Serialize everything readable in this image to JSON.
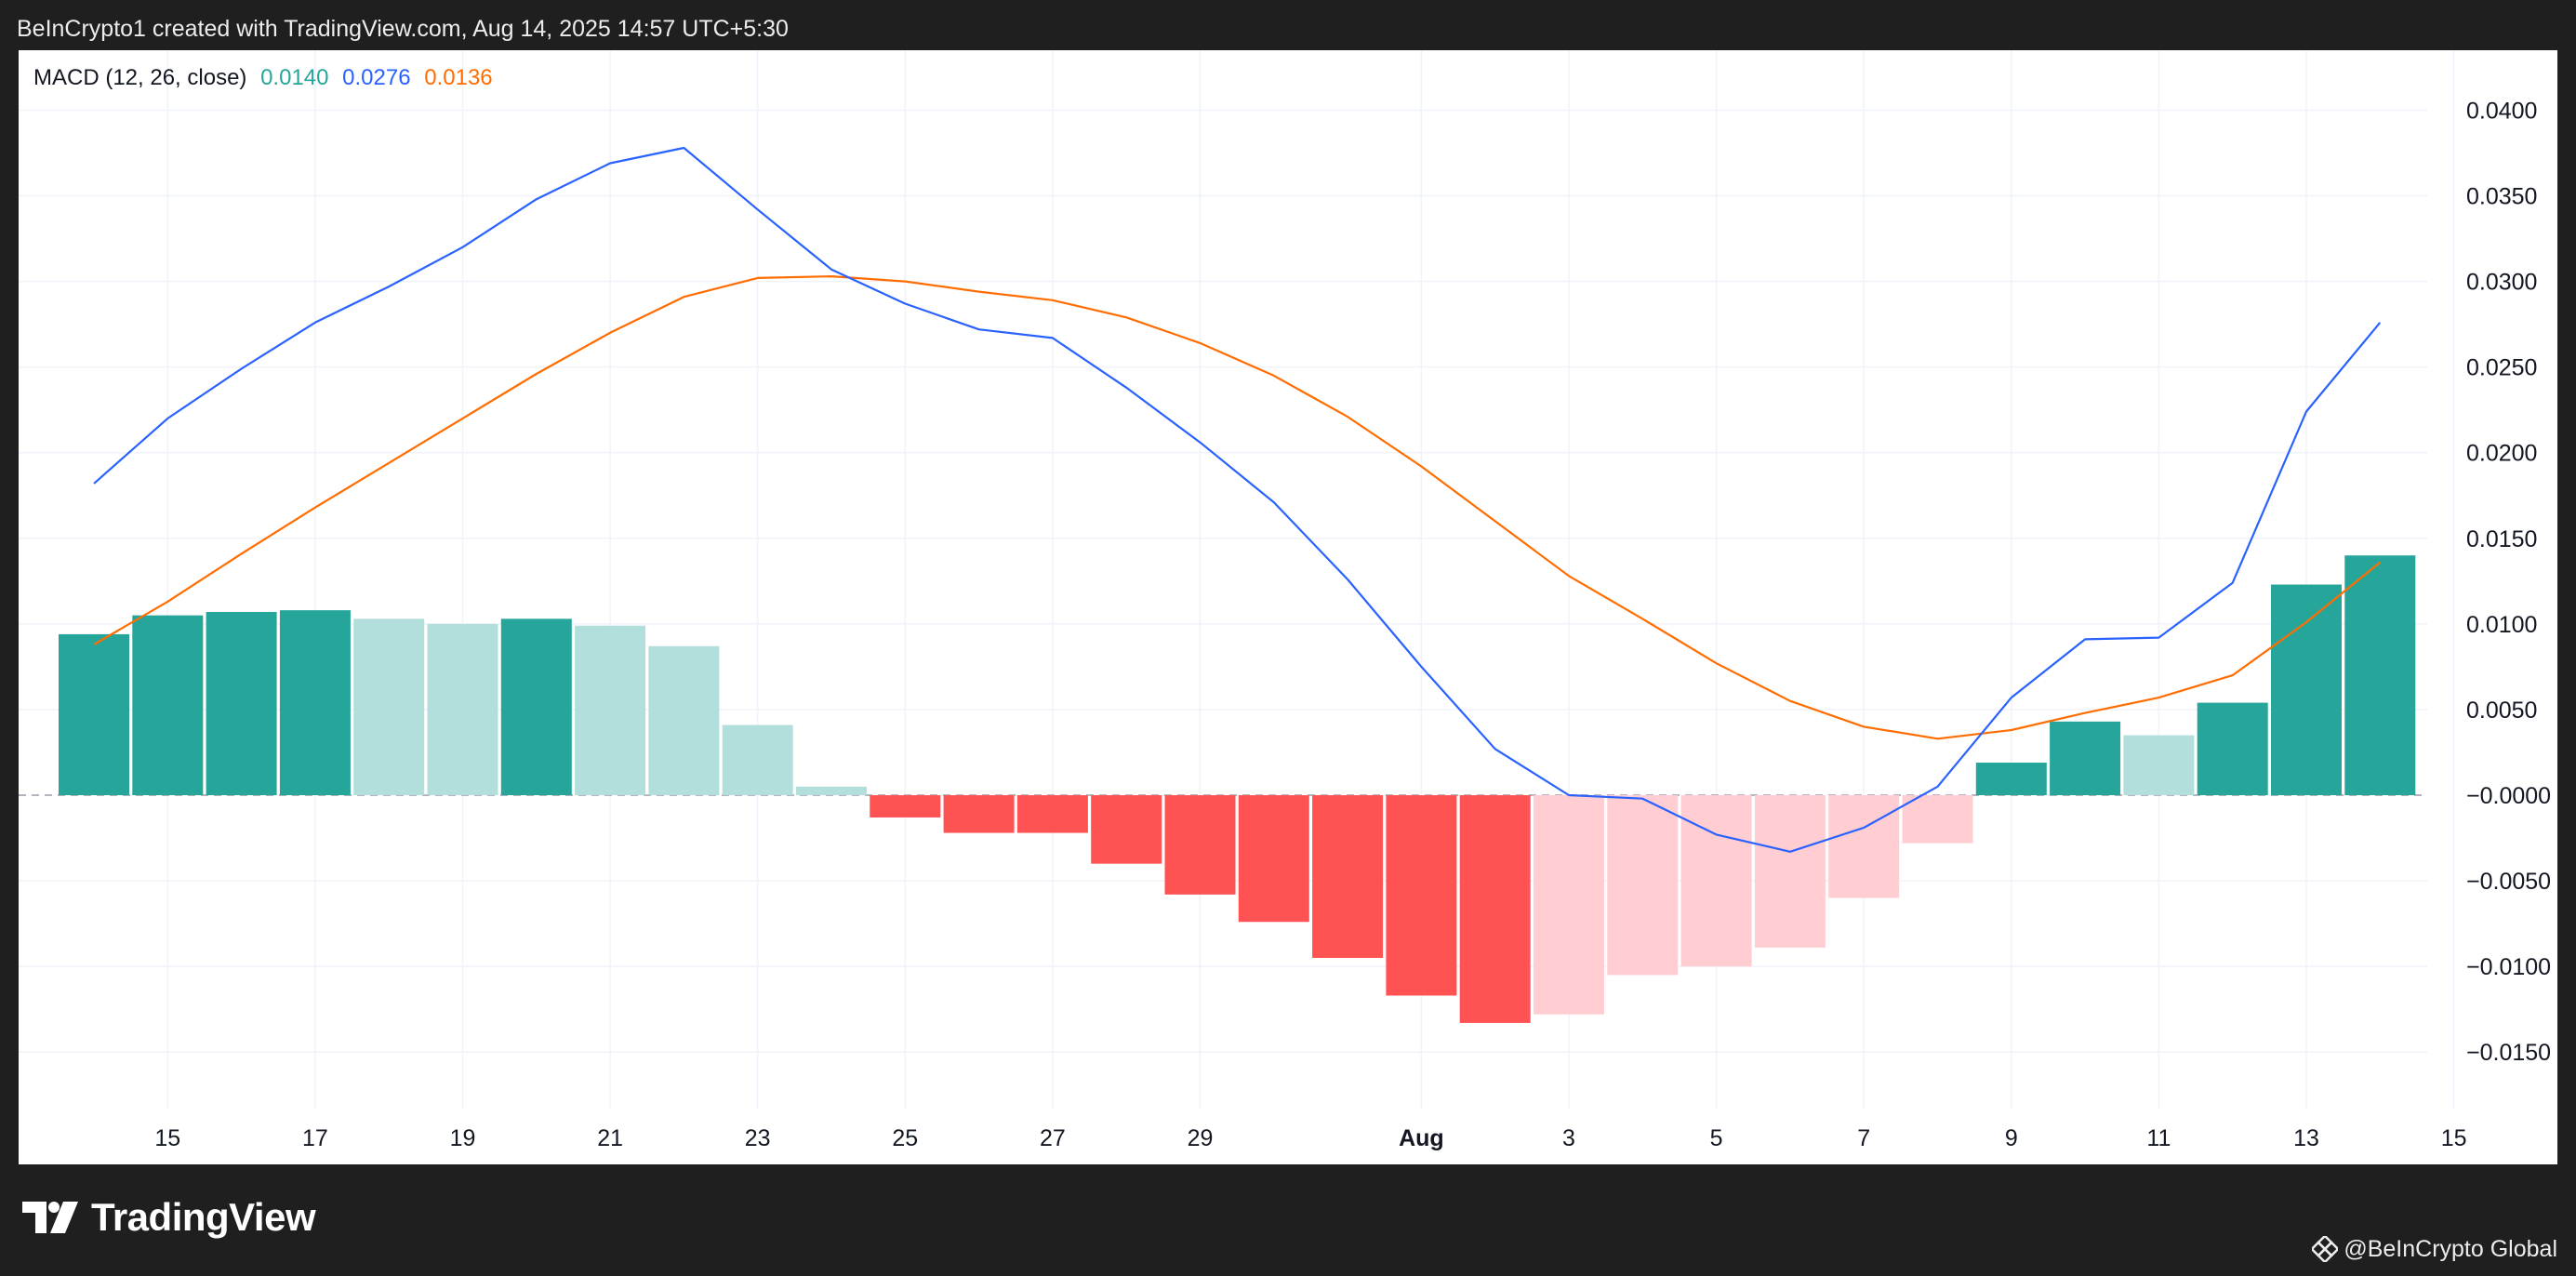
{
  "header": {
    "text": "BeInCrypto1 created with TradingView.com, Aug 14, 2025 14:57 UTC+5:30"
  },
  "legend": {
    "name": "MACD (12, 26, close)",
    "histogram_value": "0.0140",
    "macd_value": "0.0276",
    "signal_value": "0.0136"
  },
  "footer": {
    "brand": "TradingView",
    "credit": "@BeInCrypto Global"
  },
  "colors": {
    "macd_line": "#2962ff",
    "signal_line": "#ff6d00",
    "hist_pos_strong": "#26a69a",
    "hist_pos_weak": "#b2dfdb",
    "hist_neg_strong": "#ff5252",
    "hist_neg_weak": "#ffcdd2"
  },
  "chart_data": {
    "type": "bar",
    "title": "MACD (12, 26, close)",
    "x": [
      "Jul 14",
      "Jul 15",
      "Jul 16",
      "Jul 17",
      "Jul 18",
      "Jul 19",
      "Jul 20",
      "Jul 21",
      "Jul 22",
      "Jul 23",
      "Jul 24",
      "Jul 25",
      "Jul 26",
      "Jul 27",
      "Jul 28",
      "Jul 29",
      "Jul 30",
      "Jul 31",
      "Aug 1",
      "Aug 2",
      "Aug 3",
      "Aug 4",
      "Aug 5",
      "Aug 6",
      "Aug 7",
      "Aug 8",
      "Aug 9",
      "Aug 10",
      "Aug 11",
      "Aug 12",
      "Aug 13",
      "Aug 14"
    ],
    "x_tick_labels": [
      "15",
      "17",
      "19",
      "21",
      "23",
      "25",
      "27",
      "29",
      "Aug",
      "3",
      "5",
      "7",
      "9",
      "11",
      "13",
      "15"
    ],
    "y_tick_labels": [
      "0.0400",
      "0.0350",
      "0.0300",
      "0.0250",
      "0.0200",
      "0.0150",
      "0.0100",
      "0.0050",
      "−0.0000",
      "−0.0050",
      "−0.0100",
      "−0.0150"
    ],
    "y_ticks": [
      0.04,
      0.035,
      0.03,
      0.025,
      0.02,
      0.015,
      0.01,
      0.005,
      0,
      -0.005,
      -0.01,
      -0.015
    ],
    "ylim": [
      -0.0183,
      0.0435
    ],
    "grid": true,
    "zero_line": "dashed",
    "series": [
      {
        "role": "histogram",
        "values": [
          0.0094,
          0.0105,
          0.0107,
          0.0108,
          0.0103,
          0.01,
          0.0103,
          0.0099,
          0.0087,
          0.0041,
          0.0005,
          -0.0013,
          -0.0022,
          -0.0022,
          -0.004,
          -0.0058,
          -0.0074,
          -0.0095,
          -0.0117,
          -0.0133,
          -0.0128,
          -0.0105,
          -0.01,
          -0.0089,
          -0.006,
          -0.0028,
          0.0019,
          0.0043,
          0.0035,
          0.0054,
          0.0123,
          0.014
        ]
      },
      {
        "role": "macd",
        "values": [
          0.0182,
          0.022,
          0.0249,
          0.0276,
          0.0297,
          0.032,
          0.0348,
          0.0369,
          0.0378,
          0.0342,
          0.0307,
          0.0287,
          0.0272,
          0.0267,
          0.0238,
          0.0206,
          0.0171,
          0.0126,
          0.0075,
          0.0027,
          0.0,
          -0.0002,
          -0.0023,
          -0.0033,
          -0.0019,
          0.0005,
          0.0057,
          0.0091,
          0.0092,
          0.0124,
          0.0224,
          0.0276
        ]
      },
      {
        "role": "signal",
        "values": [
          0.0088,
          0.0113,
          0.0141,
          0.0168,
          0.0194,
          0.022,
          0.0246,
          0.027,
          0.0291,
          0.0302,
          0.0303,
          0.03,
          0.0294,
          0.0289,
          0.0279,
          0.0264,
          0.0245,
          0.0221,
          0.0192,
          0.016,
          0.0128,
          0.0103,
          0.0077,
          0.0055,
          0.004,
          0.0033,
          0.0038,
          0.0048,
          0.0057,
          0.007,
          0.0101,
          0.0136
        ]
      }
    ]
  }
}
